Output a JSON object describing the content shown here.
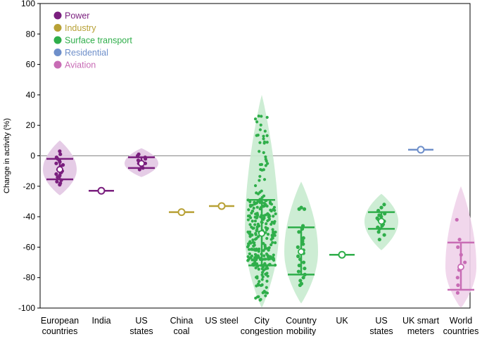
{
  "chart_data": {
    "type": "violin",
    "ylabel": "Change in activity (%)",
    "ylim": [
      -100,
      100
    ],
    "yticks": [
      -100,
      -80,
      -60,
      -40,
      -20,
      0,
      20,
      40,
      60,
      80,
      100
    ],
    "zero_line": true,
    "grid": false,
    "legend": {
      "placement": "top-left",
      "entries": [
        {
          "name": "Power",
          "color": "#7a1f7e"
        },
        {
          "name": "Industry",
          "color": "#b8a136"
        },
        {
          "name": "Surface transport",
          "color": "#2fae4a"
        },
        {
          "name": "Residential",
          "color": "#6e8fca"
        },
        {
          "name": "Aviation",
          "color": "#c86cb5"
        }
      ]
    },
    "categories": [
      {
        "label": [
          "European",
          "countries"
        ],
        "sector": "Power",
        "kind": "violin",
        "median": -9,
        "q1": -15.5,
        "q3": -2,
        "range": [
          -26,
          10
        ],
        "points": [
          3,
          1,
          -1,
          -2,
          -3,
          -4,
          -5,
          -6,
          -7,
          -8,
          -9,
          -10,
          -11,
          -12,
          -13,
          -14,
          -16,
          -17,
          -18,
          -19
        ]
      },
      {
        "label": [
          "India"
        ],
        "sector": "Power",
        "kind": "single",
        "value": -23
      },
      {
        "label": [
          "US",
          "states"
        ],
        "sector": "Power",
        "kind": "violin",
        "median": -5,
        "q1": -8,
        "q3": -1,
        "range": [
          -14,
          5
        ],
        "points": [
          1,
          0,
          -1,
          -2,
          -3,
          -4,
          -5,
          -5,
          -6,
          -7,
          -8,
          -9
        ]
      },
      {
        "label": [
          "China",
          "coal"
        ],
        "sector": "Industry",
        "kind": "single",
        "value": -37
      },
      {
        "label": [
          "US steel"
        ],
        "sector": "Industry",
        "kind": "single",
        "value": -33
      },
      {
        "label": [
          "City",
          "congestion"
        ],
        "sector": "Surface transport",
        "kind": "swarm",
        "median": -51,
        "q1": -72,
        "q3": -29,
        "range": [
          -100,
          40
        ],
        "points_min": -96,
        "points_max": 27,
        "n_points": 300
      },
      {
        "label": [
          "Country",
          "mobility"
        ],
        "sector": "Surface transport",
        "kind": "violin",
        "median": -63,
        "q1": -78,
        "q3": -47,
        "range": [
          -97,
          -17
        ],
        "points": [
          -34,
          -35,
          -35,
          -46,
          -48,
          -50,
          -54,
          -56,
          -58,
          -60,
          -62,
          -64,
          -66,
          -68,
          -70,
          -72,
          -74,
          -76,
          -78,
          -80,
          -82,
          -84,
          -85
        ]
      },
      {
        "label": [
          "UK"
        ],
        "sector": "Surface transport",
        "kind": "single",
        "value": -65
      },
      {
        "label": [
          "US",
          "states"
        ],
        "sector": "Surface transport",
        "kind": "violin",
        "median": -43,
        "q1": -48,
        "q3": -37,
        "range": [
          -62,
          -25
        ],
        "points": [
          -32,
          -34,
          -36,
          -38,
          -39,
          -40,
          -41,
          -42,
          -43,
          -44,
          -45,
          -46,
          -47,
          -48,
          -50,
          -52,
          -55
        ]
      },
      {
        "label": [
          "UK smart",
          "meters"
        ],
        "sector": "Residential",
        "kind": "single",
        "value": 4
      },
      {
        "label": [
          "World",
          "countries"
        ],
        "sector": "Aviation",
        "kind": "violin",
        "median": -73,
        "q1": -88,
        "q3": -57,
        "range": [
          -100,
          -20
        ],
        "points": [
          -42,
          -55,
          -60,
          -65,
          -70,
          -75,
          -80,
          -85,
          -90
        ]
      }
    ]
  }
}
